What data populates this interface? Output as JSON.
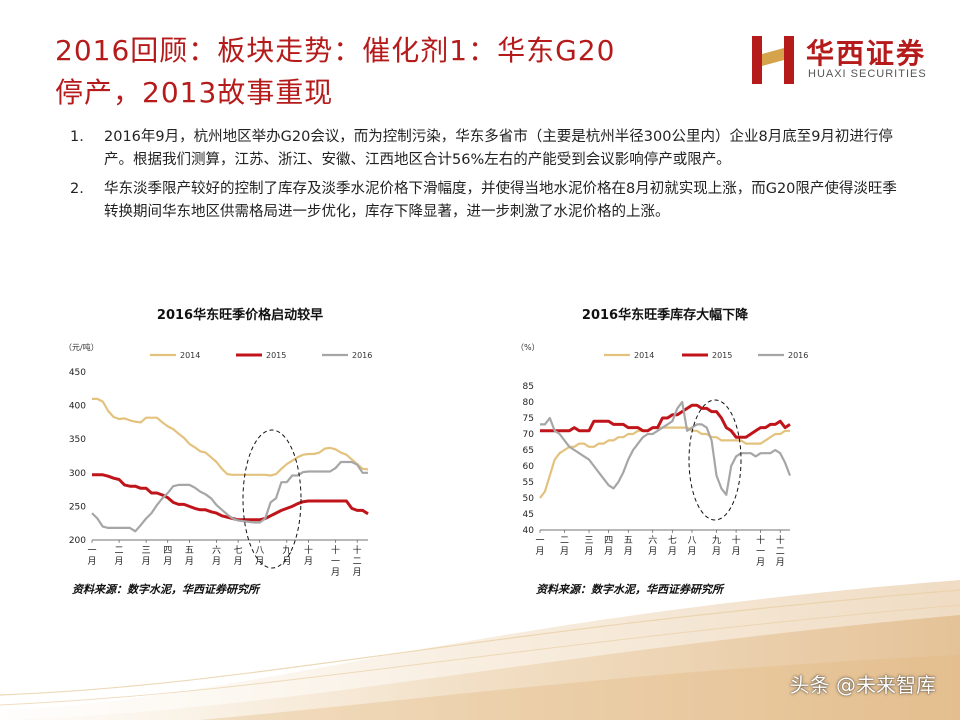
{
  "slide": {
    "title_line1": "2016回顾：板块走势：催化剂1：华东G20",
    "title_line2": "停产，2013故事重现",
    "logo_cn": "华西证券",
    "logo_en": "HUAXI SECURITIES",
    "brand_color": "#b51b1b"
  },
  "bullets": [
    {
      "num": "1.",
      "text": "2016年9月，杭州地区举办G20会议，而为控制污染，华东多省市（主要是杭州半径300公里内）企业8月底至9月初进行停产。根据我们测算，江苏、浙江、安徽、江西地区合计56%左右的产能受到会议影响停产或限产。"
    },
    {
      "num": "2.",
      "text": "华东淡季限产较好的控制了库存及淡季水泥价格下滑幅度，并使得当地水泥价格在8月初就实现上涨，而G20限产使得淡旺季转换期间华东地区供需格局进一步优化，库存下降显著，进一步刺激了水泥价格的上涨。"
    }
  ],
  "chart_data": [
    {
      "type": "line",
      "title": "2016华东旺季价格启动较早",
      "ylabel": "（元/吨）",
      "ylim": [
        200,
        450
      ],
      "yticks": [
        200,
        250,
        300,
        350,
        400,
        450
      ],
      "x": [
        0,
        1,
        2,
        3,
        4,
        5,
        6,
        7,
        8,
        9,
        10,
        11,
        12,
        13,
        14,
        15,
        16,
        17,
        18,
        19,
        20,
        21,
        22,
        23,
        24,
        25,
        26,
        27,
        28,
        29,
        30,
        31,
        32,
        33,
        34,
        35,
        36,
        37,
        38,
        39,
        40,
        41,
        42,
        43,
        44,
        45,
        46,
        47,
        48,
        49,
        50,
        51
      ],
      "x_ticks": [
        "一月",
        "二月",
        "三月",
        "四月",
        "五月",
        "六月",
        "七月",
        "八月",
        "九月",
        "十月",
        "十一月",
        "十二月"
      ],
      "x_tick_positions": [
        0,
        5,
        10,
        14,
        18,
        23,
        27,
        31,
        36,
        40,
        45,
        49
      ],
      "series": [
        {
          "name": "2014",
          "color": "#e3c27e",
          "values": [
            410,
            410,
            406,
            392,
            383,
            380,
            381,
            378,
            376,
            375,
            382,
            382,
            382,
            375,
            369,
            365,
            358,
            352,
            343,
            338,
            332,
            330,
            323,
            316,
            306,
            298,
            297,
            297,
            297,
            297,
            297,
            297,
            297,
            296,
            298,
            306,
            313,
            318,
            323,
            327,
            328,
            328,
            330,
            336,
            337,
            335,
            330,
            327,
            320,
            313,
            306,
            305
          ]
        },
        {
          "name": "2015",
          "color": "#c0141b",
          "values": [
            297,
            297,
            297,
            295,
            292,
            290,
            282,
            280,
            280,
            277,
            277,
            270,
            270,
            267,
            263,
            256,
            253,
            253,
            250,
            247,
            245,
            245,
            242,
            240,
            236,
            234,
            232,
            230,
            230,
            230,
            230,
            230,
            232,
            236,
            240,
            244,
            247,
            250,
            254,
            257,
            258,
            258,
            258,
            258,
            258,
            258,
            258,
            258,
            247,
            244,
            244,
            239
          ]
        },
        {
          "name": "2016",
          "color": "#a6a6a6",
          "values": [
            240,
            232,
            220,
            218,
            218,
            218,
            218,
            218,
            213,
            222,
            232,
            240,
            252,
            262,
            270,
            280,
            282,
            282,
            282,
            278,
            272,
            268,
            262,
            252,
            245,
            238,
            232,
            229,
            228,
            227,
            226,
            226,
            232,
            256,
            262,
            286,
            286,
            296,
            296,
            301,
            302,
            302,
            302,
            302,
            302,
            307,
            316,
            316,
            316,
            312,
            300,
            300
          ]
        }
      ],
      "legend_position": "top"
    },
    {
      "type": "line",
      "title": "2016华东旺季库存大幅下降",
      "ylabel": "（%）",
      "ylim": [
        40,
        85
      ],
      "yticks": [
        40,
        45,
        50,
        55,
        60,
        65,
        70,
        75,
        80,
        85
      ],
      "x": [
        0,
        1,
        2,
        3,
        4,
        5,
        6,
        7,
        8,
        9,
        10,
        11,
        12,
        13,
        14,
        15,
        16,
        17,
        18,
        19,
        20,
        21,
        22,
        23,
        24,
        25,
        26,
        27,
        28,
        29,
        30,
        31,
        32,
        33,
        34,
        35,
        36,
        37,
        38,
        39,
        40,
        41,
        42,
        43,
        44,
        45,
        46,
        47,
        48,
        49,
        50,
        51
      ],
      "x_ticks": [
        "一月",
        "二月",
        "三月",
        "四月",
        "五月",
        "六月",
        "七月",
        "八月",
        "九月",
        "十月",
        "十一月",
        "十二月"
      ],
      "x_tick_positions": [
        0,
        5,
        10,
        14,
        18,
        23,
        27,
        31,
        36,
        40,
        45,
        49
      ],
      "series": [
        {
          "name": "2014",
          "color": "#e3c27e",
          "values": [
            50,
            52,
            57,
            62,
            64,
            65,
            66,
            66,
            67,
            67,
            66,
            66,
            67,
            67,
            68,
            68,
            69,
            69,
            70,
            70,
            71,
            71,
            71,
            72,
            72,
            72,
            72,
            72,
            72,
            72,
            72,
            71,
            71,
            70,
            70,
            69,
            69,
            68,
            68,
            68,
            68,
            68,
            67,
            67,
            67,
            67,
            68,
            69,
            70,
            70,
            71,
            71
          ]
        },
        {
          "name": "2015",
          "color": "#c0141b",
          "values": [
            71,
            71,
            71,
            71,
            71,
            71,
            71,
            72,
            71,
            71,
            71,
            74,
            74,
            74,
            74,
            73,
            73,
            73,
            72,
            72,
            72,
            71,
            71,
            72,
            72,
            75,
            75,
            76,
            76,
            77,
            78,
            79,
            79,
            78,
            78,
            77,
            77,
            75,
            72,
            71,
            69,
            69,
            69,
            70,
            71,
            72,
            72,
            73,
            73,
            74,
            72,
            73
          ]
        },
        {
          "name": "2016",
          "color": "#a6a6a6",
          "values": [
            73,
            73,
            75,
            71,
            70,
            68,
            66,
            65,
            64,
            63,
            62,
            60,
            58,
            56,
            54,
            53,
            55,
            58,
            62,
            65,
            67,
            69,
            70,
            70,
            71,
            72,
            73,
            74,
            78,
            80,
            71,
            72,
            73,
            73,
            72,
            68,
            57,
            53,
            51,
            60,
            63,
            64,
            64,
            64,
            63,
            64,
            64,
            64,
            65,
            64,
            61,
            57
          ]
        }
      ],
      "legend_position": "top"
    }
  ],
  "sources": [
    "资料来源：数字水泥，华西证券研究所",
    "资料来源：数字水泥，华西证券研究所"
  ],
  "watermark": "头条 @未来智库"
}
